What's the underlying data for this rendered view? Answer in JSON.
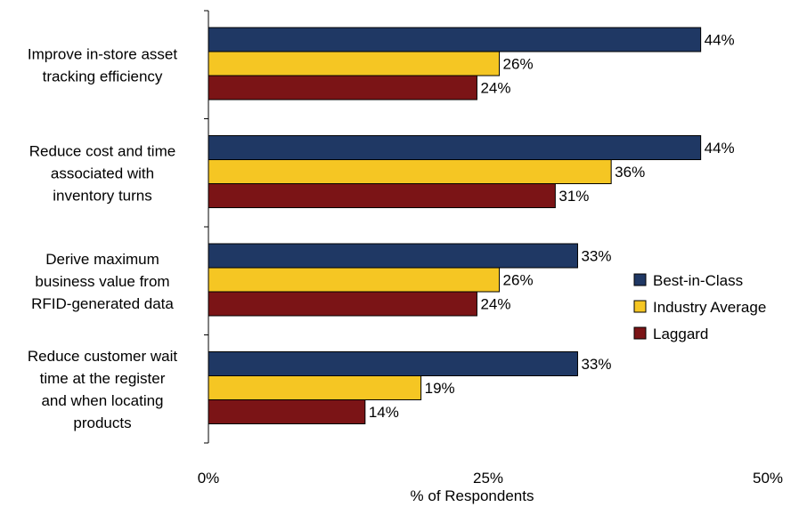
{
  "chart_data": {
    "type": "bar",
    "orientation": "horizontal",
    "categories": [
      [
        "Improve in-store asset",
        "tracking efficiency"
      ],
      [
        "Reduce cost and time",
        "associated with",
        "inventory turns"
      ],
      [
        "Derive maximum",
        "business value from",
        "RFID-generated data"
      ],
      [
        "Reduce customer wait",
        "time at the register",
        "and when locating",
        "products"
      ]
    ],
    "series": [
      {
        "name": "Best-in-Class",
        "color": "#1f3864",
        "values": [
          44,
          44,
          33,
          33
        ]
      },
      {
        "name": "Industry Average",
        "color": "#f5c623",
        "values": [
          26,
          36,
          26,
          19
        ]
      },
      {
        "name": "Laggard",
        "color": "#7b1416",
        "values": [
          24,
          31,
          24,
          14
        ]
      }
    ],
    "value_suffix": "%",
    "xlabel": "% of Respondents",
    "xlim": [
      0,
      50
    ],
    "xticks": [
      0,
      25,
      50
    ],
    "xtick_labels": [
      "0%",
      "25%",
      "50%"
    ],
    "legend_position": "right",
    "grid": false
  }
}
